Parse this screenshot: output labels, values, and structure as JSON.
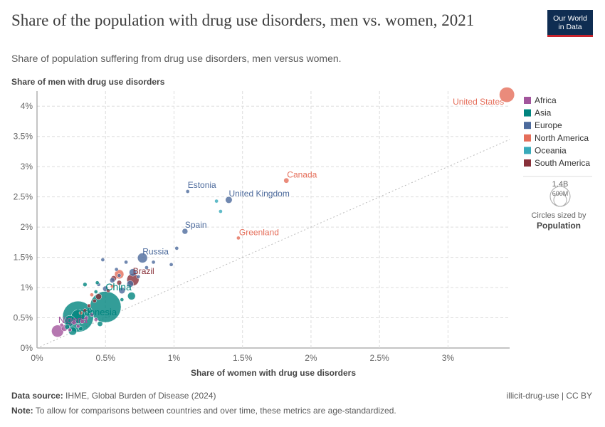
{
  "header": {
    "title": "Share of the population with drug use disorders, men vs. women, 2021",
    "subtitle": "Share of population suffering from drug use disorders, men versus women.",
    "logo_line1": "Our World",
    "logo_line2": "in Data"
  },
  "footer": {
    "source_label": "Data source:",
    "source_text": "IHME, Global Burden of Disease (2024)",
    "note_label": "Note:",
    "note_text": "To allow for comparisons between countries and over time, these metrics are age-standardized.",
    "right_text": "illicit-drug-use | CC BY"
  },
  "legend": {
    "size_title_1": "Circles sized by",
    "size_title_2": "Population",
    "size_large": "1.4B",
    "size_small": "600M"
  },
  "colors": {
    "Africa": "#a2559c",
    "Asia": "#00847e",
    "Europe": "#4c6a9c",
    "North America": "#e56e5a",
    "Oceania": "#38aaba",
    "South America": "#883039"
  },
  "chart_data": {
    "type": "scatter",
    "xlabel": "Share of women with drug use disorders",
    "ylabel": "Share of men with drug use disorders",
    "xlim": [
      0,
      3.45
    ],
    "ylim": [
      0,
      4.25
    ],
    "xticks": [
      0,
      0.5,
      1,
      1.5,
      2,
      2.5,
      3
    ],
    "xtick_labels": [
      "0%",
      "0.5%",
      "1%",
      "1.5%",
      "2%",
      "2.5%",
      "3%"
    ],
    "yticks": [
      0,
      0.5,
      1,
      1.5,
      2,
      2.5,
      3,
      3.5,
      4
    ],
    "ytick_labels": [
      "0%",
      "0.5%",
      "1%",
      "1.5%",
      "2%",
      "2.5%",
      "3%",
      "3.5%",
      "4%"
    ],
    "grid": true,
    "legend_position": "right",
    "regions": [
      "Africa",
      "Asia",
      "Europe",
      "North America",
      "Oceania",
      "South America"
    ],
    "labeled_points": [
      {
        "label": "United States",
        "region": "North America",
        "x": 3.43,
        "y": 4.19,
        "pop": 337
      },
      {
        "label": "Canada",
        "region": "North America",
        "x": 1.82,
        "y": 2.77,
        "pop": 39
      },
      {
        "label": "Greenland",
        "region": "North America",
        "x": 1.47,
        "y": 1.82,
        "pop": 0.06
      },
      {
        "label": "Estonia",
        "region": "Europe",
        "x": 1.1,
        "y": 2.59,
        "pop": 1.3
      },
      {
        "label": "United Kingdom",
        "region": "Europe",
        "x": 1.4,
        "y": 2.45,
        "pop": 67
      },
      {
        "label": "Spain",
        "region": "Europe",
        "x": 1.08,
        "y": 1.93,
        "pop": 47
      },
      {
        "label": "Russia",
        "region": "Europe",
        "x": 0.77,
        "y": 1.49,
        "pop": 145
      },
      {
        "label": "Brazil",
        "region": "South America",
        "x": 0.7,
        "y": 1.13,
        "pop": 214
      },
      {
        "label": "China",
        "region": "Asia",
        "x": 0.5,
        "y": 0.68,
        "pop": 1420
      },
      {
        "label": "Indonesia",
        "region": "Asia",
        "x": 0.3,
        "y": 0.52,
        "pop": 274
      },
      {
        "label": "Nigeria",
        "region": "Africa",
        "x": 0.15,
        "y": 0.28,
        "pop": 213
      }
    ],
    "points": [
      {
        "region": "Asia",
        "x": 0.3,
        "y": 0.52,
        "pop": 1400
      },
      {
        "region": "Oceania",
        "x": 1.31,
        "y": 2.43,
        "pop": 0.3
      },
      {
        "region": "Oceania",
        "x": 1.34,
        "y": 2.26,
        "pop": 5
      },
      {
        "region": "Europe",
        "x": 1.02,
        "y": 1.65,
        "pop": 1
      },
      {
        "region": "Europe",
        "x": 0.98,
        "y": 1.38,
        "pop": 2
      },
      {
        "region": "Europe",
        "x": 0.85,
        "y": 1.42,
        "pop": 10
      },
      {
        "region": "Europe",
        "x": 0.8,
        "y": 1.33,
        "pop": 8
      },
      {
        "region": "Europe",
        "x": 0.74,
        "y": 1.18,
        "pop": 11
      },
      {
        "region": "Europe",
        "x": 0.7,
        "y": 1.25,
        "pop": 83
      },
      {
        "region": "Europe",
        "x": 0.65,
        "y": 1.42,
        "pop": 6
      },
      {
        "region": "Europe",
        "x": 0.6,
        "y": 1.2,
        "pop": 10
      },
      {
        "region": "Europe",
        "x": 0.55,
        "y": 1.12,
        "pop": 38
      },
      {
        "region": "Europe",
        "x": 0.48,
        "y": 1.46,
        "pop": 3
      },
      {
        "region": "Europe",
        "x": 0.45,
        "y": 1.05,
        "pop": 9
      },
      {
        "region": "Europe",
        "x": 0.62,
        "y": 0.95,
        "pop": 59
      },
      {
        "region": "Europe",
        "x": 0.5,
        "y": 0.98,
        "pop": 44
      },
      {
        "region": "Europe",
        "x": 0.58,
        "y": 1.3,
        "pop": 5
      },
      {
        "region": "Europe",
        "x": 0.68,
        "y": 1.06,
        "pop": 65
      },
      {
        "region": "South America",
        "x": 0.56,
        "y": 1.15,
        "pop": 45
      },
      {
        "region": "South America",
        "x": 0.6,
        "y": 1.08,
        "pop": 33
      },
      {
        "region": "South America",
        "x": 0.52,
        "y": 0.95,
        "pop": 19
      },
      {
        "region": "South America",
        "x": 0.45,
        "y": 0.85,
        "pop": 51
      },
      {
        "region": "South America",
        "x": 0.42,
        "y": 0.78,
        "pop": 18
      },
      {
        "region": "South America",
        "x": 0.38,
        "y": 0.7,
        "pop": 12
      },
      {
        "region": "South America",
        "x": 0.35,
        "y": 0.62,
        "pop": 7
      },
      {
        "region": "North America",
        "x": 0.6,
        "y": 1.22,
        "pop": 126
      },
      {
        "region": "North America",
        "x": 0.55,
        "y": 1.02,
        "pop": 5
      },
      {
        "region": "North America",
        "x": 0.4,
        "y": 0.88,
        "pop": 3
      },
      {
        "region": "North America",
        "x": 0.32,
        "y": 0.58,
        "pop": 11
      },
      {
        "region": "Asia",
        "x": 0.35,
        "y": 1.05,
        "pop": 25
      },
      {
        "region": "Asia",
        "x": 0.44,
        "y": 1.08,
        "pop": 8
      },
      {
        "region": "Asia",
        "x": 0.69,
        "y": 0.86,
        "pop": 88
      },
      {
        "region": "Asia",
        "x": 0.62,
        "y": 0.8,
        "pop": 6
      },
      {
        "region": "Asia",
        "x": 0.43,
        "y": 0.93,
        "pop": 5
      },
      {
        "region": "Asia",
        "x": 0.46,
        "y": 0.4,
        "pop": 40
      },
      {
        "region": "Asia",
        "x": 0.26,
        "y": 0.28,
        "pop": 100
      },
      {
        "region": "Asia",
        "x": 0.32,
        "y": 0.32,
        "pop": 30
      },
      {
        "region": "Asia",
        "x": 0.22,
        "y": 0.35,
        "pop": 35
      },
      {
        "region": "Asia",
        "x": 0.38,
        "y": 0.6,
        "pop": 20
      },
      {
        "region": "Asia",
        "x": 0.24,
        "y": 0.45,
        "pop": 170
      },
      {
        "region": "Africa",
        "x": 0.2,
        "y": 0.33,
        "pop": 60
      },
      {
        "region": "Africa",
        "x": 0.18,
        "y": 0.38,
        "pop": 20
      },
      {
        "region": "Africa",
        "x": 0.27,
        "y": 0.42,
        "pop": 30
      },
      {
        "region": "Africa",
        "x": 0.3,
        "y": 0.36,
        "pop": 15
      },
      {
        "region": "Africa",
        "x": 0.36,
        "y": 0.5,
        "pop": 10
      },
      {
        "region": "Africa",
        "x": 0.4,
        "y": 0.55,
        "pop": 8
      },
      {
        "region": "Africa",
        "x": 0.33,
        "y": 0.44,
        "pop": 25
      },
      {
        "region": "Africa",
        "x": 0.24,
        "y": 0.3,
        "pop": 12
      },
      {
        "region": "Africa",
        "x": 0.43,
        "y": 0.47,
        "pop": 6
      }
    ]
  }
}
